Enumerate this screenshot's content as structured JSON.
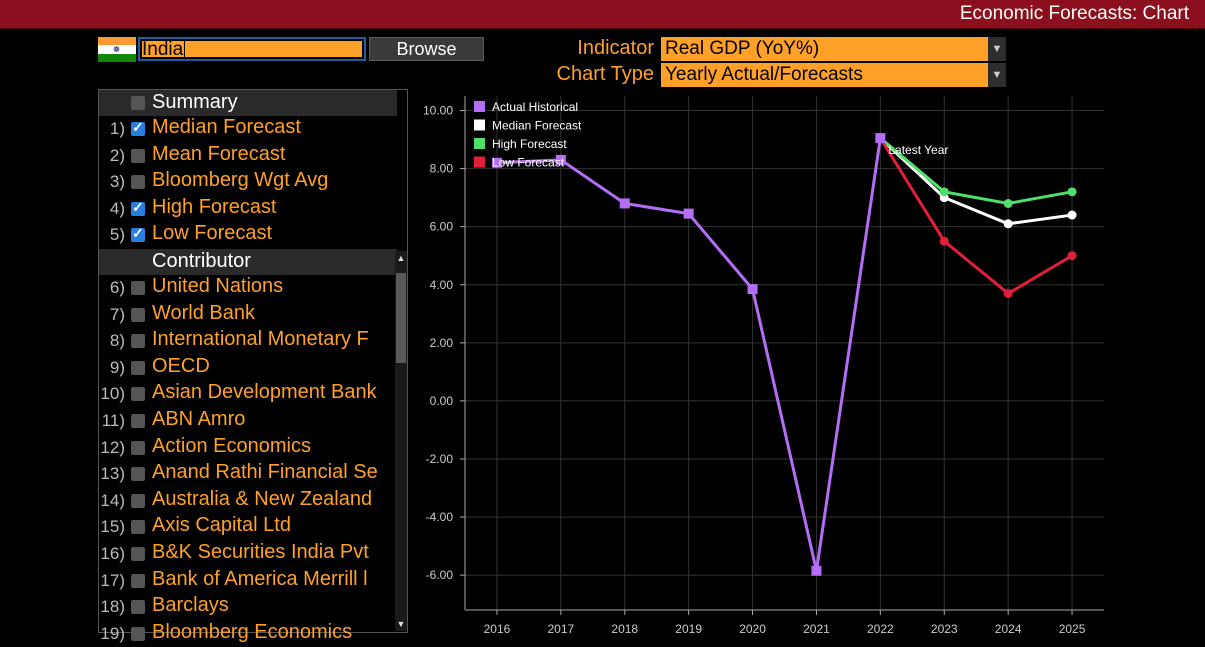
{
  "window": {
    "title": "Economic Forecasts: Chart"
  },
  "country": {
    "value": "India",
    "flag_colors": [
      "#ff9933",
      "#ffffff",
      "#138808"
    ]
  },
  "browse_label": "Browse",
  "indicator": {
    "label": "Indicator",
    "value": "Real GDP (YoY%)"
  },
  "chart_type": {
    "label": "Chart Type",
    "value": "Yearly Actual/Forecasts"
  },
  "summary": {
    "header": "Summary",
    "items": [
      {
        "num": "1)",
        "label": "Median Forecast",
        "checked": true
      },
      {
        "num": "2)",
        "label": "Mean Forecast",
        "checked": false
      },
      {
        "num": "3)",
        "label": "Bloomberg Wgt Avg",
        "checked": false
      },
      {
        "num": "4)",
        "label": "High Forecast",
        "checked": true
      },
      {
        "num": "5)",
        "label": "Low Forecast",
        "checked": true
      }
    ]
  },
  "contributors": {
    "header": "Contributor",
    "items": [
      {
        "num": "6)",
        "label": "United Nations"
      },
      {
        "num": "7)",
        "label": "World Bank"
      },
      {
        "num": "8)",
        "label": "International Monetary F"
      },
      {
        "num": "9)",
        "label": "OECD"
      },
      {
        "num": "10)",
        "label": "Asian Development Bank"
      },
      {
        "num": "11)",
        "label": "ABN Amro"
      },
      {
        "num": "12)",
        "label": "Action Economics"
      },
      {
        "num": "13)",
        "label": "Anand Rathi Financial Se"
      },
      {
        "num": "14)",
        "label": "Australia & New Zealand"
      },
      {
        "num": "15)",
        "label": "Axis Capital Ltd"
      },
      {
        "num": "16)",
        "label": "B&K Securities India Pvt"
      },
      {
        "num": "17)",
        "label": "Bank of America Merrill l"
      },
      {
        "num": "18)",
        "label": "Barclays"
      },
      {
        "num": "19)",
        "label": "Bloomberg Economics"
      }
    ]
  },
  "chart_data": {
    "type": "line",
    "x": [
      "2016",
      "2017",
      "2018",
      "2019",
      "2020",
      "2021",
      "2022",
      "2023",
      "2024",
      "2025"
    ],
    "ylim": [
      -7.2,
      10.5
    ],
    "yticks": [
      "10.00",
      "8.00",
      "6.00",
      "4.00",
      "2.00",
      "0.00",
      "-2.00",
      "-4.00",
      "-6.00"
    ],
    "ytick_values": [
      10,
      8,
      6,
      4,
      2,
      0,
      -2,
      -4,
      -6
    ],
    "grid": true,
    "legend_position": "top-left",
    "annotation": "Latest Year",
    "series": [
      {
        "name": "Actual Historical",
        "color": "#b36ef5",
        "marker": "square",
        "x": [
          "2016",
          "2017",
          "2018",
          "2019",
          "2020",
          "2021",
          "2022"
        ],
        "values": [
          8.2,
          8.3,
          6.8,
          6.45,
          3.85,
          -5.85,
          9.05
        ]
      },
      {
        "name": "Median Forecast",
        "color": "#ffffff",
        "marker": "circle",
        "x": [
          "2022",
          "2023",
          "2024",
          "2025"
        ],
        "values": [
          9.05,
          7.0,
          6.1,
          6.4
        ]
      },
      {
        "name": "High Forecast",
        "color": "#4fe06a",
        "marker": "circle",
        "x": [
          "2022",
          "2023",
          "2024",
          "2025"
        ],
        "values": [
          9.05,
          7.2,
          6.8,
          7.2
        ]
      },
      {
        "name": "Low Forecast",
        "color": "#e0203a",
        "marker": "circle",
        "x": [
          "2022",
          "2023",
          "2024",
          "2025"
        ],
        "values": [
          9.05,
          5.5,
          3.7,
          5.0
        ]
      }
    ]
  }
}
